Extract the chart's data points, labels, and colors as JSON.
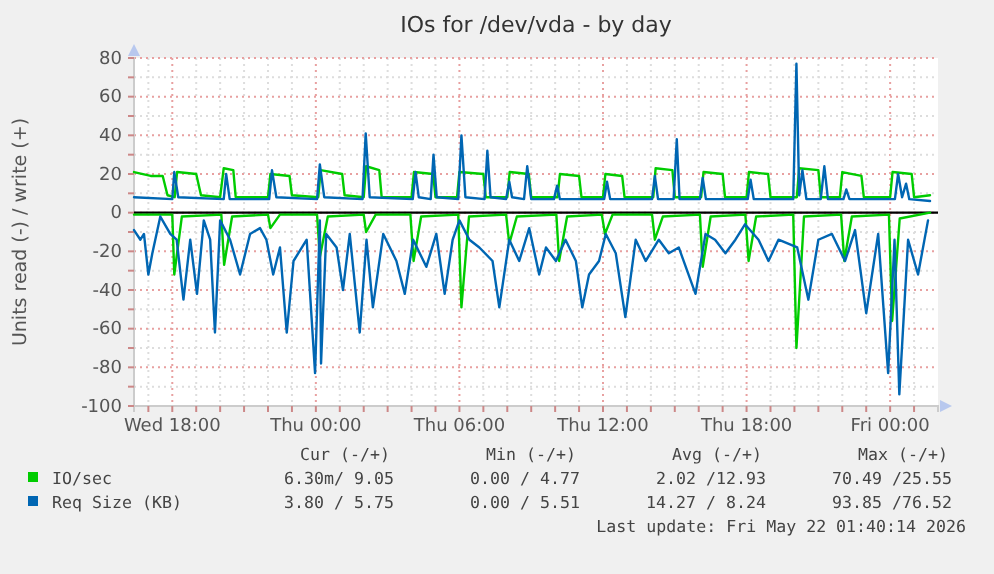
{
  "chart_data": {
    "type": "line",
    "title": "IOs for /dev/vda - by day",
    "ylabel": "Units read (-) / write (+)",
    "xlim": [
      "2026-05-20T16:24",
      "2026-05-22T02:00"
    ],
    "ylim": [
      -100,
      80
    ],
    "xticks": [
      {
        "value": "2026-05-20T17:00",
        "label": null
      },
      {
        "value": "2026-05-20T18:00",
        "label": "Wed 18:00"
      },
      {
        "value": "2026-05-20T19:00",
        "label": null
      },
      {
        "value": "2026-05-20T20:00",
        "label": null
      },
      {
        "value": "2026-05-20T21:00",
        "label": null
      },
      {
        "value": "2026-05-20T22:00",
        "label": null
      },
      {
        "value": "2026-05-20T23:00",
        "label": null
      },
      {
        "value": "2026-05-21T00:00",
        "label": "Thu 00:00"
      },
      {
        "value": "2026-05-21T01:00",
        "label": null
      },
      {
        "value": "2026-05-21T02:00",
        "label": null
      },
      {
        "value": "2026-05-21T03:00",
        "label": null
      },
      {
        "value": "2026-05-21T04:00",
        "label": null
      },
      {
        "value": "2026-05-21T05:00",
        "label": null
      },
      {
        "value": "2026-05-21T06:00",
        "label": "Thu 06:00"
      },
      {
        "value": "2026-05-21T07:00",
        "label": null
      },
      {
        "value": "2026-05-21T08:00",
        "label": null
      },
      {
        "value": "2026-05-21T09:00",
        "label": null
      },
      {
        "value": "2026-05-21T10:00",
        "label": null
      },
      {
        "value": "2026-05-21T11:00",
        "label": null
      },
      {
        "value": "2026-05-21T12:00",
        "label": "Thu 12:00"
      },
      {
        "value": "2026-05-21T13:00",
        "label": null
      },
      {
        "value": "2026-05-21T14:00",
        "label": null
      },
      {
        "value": "2026-05-21T15:00",
        "label": null
      },
      {
        "value": "2026-05-21T16:00",
        "label": null
      },
      {
        "value": "2026-05-21T17:00",
        "label": null
      },
      {
        "value": "2026-05-21T18:00",
        "label": "Thu 18:00"
      },
      {
        "value": "2026-05-21T19:00",
        "label": null
      },
      {
        "value": "2026-05-21T20:00",
        "label": null
      },
      {
        "value": "2026-05-21T21:00",
        "label": null
      },
      {
        "value": "2026-05-21T22:00",
        "label": null
      },
      {
        "value": "2026-05-21T23:00",
        "label": null
      },
      {
        "value": "2026-05-22T00:00",
        "label": "Fri 00:00"
      },
      {
        "value": "2026-05-22T01:00",
        "label": null
      }
    ],
    "yticks": [
      -100,
      {
        "value": -90,
        "label": null
      },
      -80,
      {
        "value": -70,
        "label": null
      },
      -60,
      {
        "value": -50,
        "label": null
      },
      -40,
      {
        "value": -30,
        "label": null
      },
      -20,
      {
        "value": -10,
        "label": null
      },
      0,
      {
        "value": 10,
        "label": null
      },
      20,
      {
        "value": 30,
        "label": null
      },
      40,
      {
        "value": 50,
        "label": null
      },
      60,
      {
        "value": 70,
        "label": null
      },
      80
    ],
    "grid": true,
    "legend": "bottom",
    "ref_lines": [
      {
        "axis": "y",
        "value": 0,
        "color": "#000000"
      }
    ],
    "series": [
      {
        "name": "IO/sec",
        "color": "#00cc00",
        "x": [
          "2026-05-20T16:24",
          "2026-05-20T17:06",
          "2026-05-20T17:36",
          "2026-05-20T17:48",
          "2026-05-20T18:06",
          "2026-05-20T18:12",
          "2026-05-20T19:00",
          "2026-05-20T19:12",
          "2026-05-20T20:00",
          "2026-05-20T20:09",
          "2026-05-20T20:33",
          "2026-05-20T20:39",
          "2026-05-20T22:00",
          "2026-05-20T22:06",
          "2026-05-20T22:54",
          "2026-05-20T23:00",
          "2026-05-21T00:06",
          "2026-05-21T00:12",
          "2026-05-21T01:06",
          "2026-05-21T01:12",
          "2026-05-21T02:00",
          "2026-05-21T02:06",
          "2026-05-21T02:39",
          "2026-05-21T02:45",
          "2026-05-21T04:00",
          "2026-05-21T04:06",
          "2026-05-21T04:54",
          "2026-05-21T05:00",
          "2026-05-21T05:54",
          "2026-05-21T06:00",
          "2026-05-21T07:00",
          "2026-05-21T07:06",
          "2026-05-21T08:00",
          "2026-05-21T08:06",
          "2026-05-21T08:54",
          "2026-05-21T09:00",
          "2026-05-21T10:06",
          "2026-05-21T10:12",
          "2026-05-21T11:00",
          "2026-05-21T11:06",
          "2026-05-21T12:00",
          "2026-05-21T12:06",
          "2026-05-21T12:48",
          "2026-05-21T12:54",
          "2026-05-21T14:06",
          "2026-05-21T14:12",
          "2026-05-21T14:54",
          "2026-05-21T15:00",
          "2026-05-21T16:06",
          "2026-05-21T16:12",
          "2026-05-21T17:00",
          "2026-05-21T17:06",
          "2026-05-21T18:00",
          "2026-05-21T18:06",
          "2026-05-21T18:54",
          "2026-05-21T19:00",
          "2026-05-21T20:06",
          "2026-05-21T20:12",
          "2026-05-21T21:00",
          "2026-05-21T21:06",
          "2026-05-21T21:54",
          "2026-05-21T22:00",
          "2026-05-21T22:48",
          "2026-05-21T22:54",
          "2026-05-22T00:00",
          "2026-05-22T00:06",
          "2026-05-22T00:54",
          "2026-05-22T01:00",
          "2026-05-22T01:40"
        ],
        "values": [
          21,
          19,
          19,
          9,
          8,
          21,
          20,
          9,
          8,
          23,
          22,
          8,
          8,
          20,
          19,
          9,
          8,
          22,
          20,
          9,
          8,
          24,
          22,
          8,
          8,
          21,
          20,
          8,
          8,
          21,
          20,
          8,
          8,
          21,
          20,
          8,
          8,
          20,
          19,
          8,
          8,
          20,
          19,
          8,
          8,
          23,
          22,
          8,
          8,
          21,
          20,
          8,
          8,
          21,
          20,
          8,
          8,
          23,
          22,
          8,
          8,
          21,
          19,
          8,
          8,
          21,
          20,
          8,
          9
        ]
      },
      {
        "color": "#00cc00",
        "x": [
          "2026-05-20T16:24",
          "2026-05-20T18:00",
          "2026-05-20T18:05",
          "2026-05-20T18:24",
          "2026-05-20T20:03",
          "2026-05-20T20:10",
          "2026-05-20T20:30",
          "2026-05-20T22:00",
          "2026-05-20T22:06",
          "2026-05-20T22:30",
          "2026-05-21T00:03",
          "2026-05-21T00:10",
          "2026-05-21T00:30",
          "2026-05-21T02:00",
          "2026-05-21T02:06",
          "2026-05-21T02:30",
          "2026-05-21T03:57",
          "2026-05-21T04:05",
          "2026-05-21T04:24",
          "2026-05-21T05:57",
          "2026-05-21T06:05",
          "2026-05-21T06:24",
          "2026-05-21T07:57",
          "2026-05-21T08:05",
          "2026-05-21T08:24",
          "2026-05-21T10:03",
          "2026-05-21T10:10",
          "2026-05-21T10:30",
          "2026-05-21T11:57",
          "2026-05-21T12:05",
          "2026-05-21T12:24",
          "2026-05-21T14:03",
          "2026-05-21T14:10",
          "2026-05-21T14:30",
          "2026-05-21T16:03",
          "2026-05-21T16:10",
          "2026-05-21T16:30",
          "2026-05-21T17:57",
          "2026-05-21T18:05",
          "2026-05-21T18:24",
          "2026-05-21T19:57",
          "2026-05-21T20:05",
          "2026-05-21T20:24",
          "2026-05-21T21:57",
          "2026-05-21T22:05",
          "2026-05-21T22:24",
          "2026-05-21T23:57",
          "2026-05-22T00:05",
          "2026-05-22T00:24",
          "2026-05-22T01:40"
        ],
        "values": [
          -1,
          -1,
          -32,
          -2,
          -1,
          -27,
          -2,
          -1,
          -8,
          -1,
          -1,
          -23,
          -2,
          -1,
          -10,
          -1,
          -1,
          -25,
          -2,
          -1,
          -49,
          -2,
          -1,
          -16,
          -2,
          -1,
          -25,
          -2,
          -1,
          -11,
          -1,
          -1,
          -14,
          -2,
          -1,
          -28,
          -2,
          -1,
          -25,
          -2,
          -1,
          -70,
          -2,
          -1,
          -25,
          -2,
          -1,
          -56,
          -3,
          0
        ]
      },
      {
        "name": "Req Size (KB)",
        "color": "#0066b3",
        "x": [
          "2026-05-20T16:24",
          "2026-05-20T18:00",
          "2026-05-20T18:05",
          "2026-05-20T18:15",
          "2026-05-20T20:09",
          "2026-05-20T20:15",
          "2026-05-20T20:24",
          "2026-05-20T22:03",
          "2026-05-20T22:10",
          "2026-05-20T22:21",
          "2026-05-21T00:03",
          "2026-05-21T00:10",
          "2026-05-21T00:21",
          "2026-05-21T01:57",
          "2026-05-21T02:05",
          "2026-05-21T02:15",
          "2026-05-21T04:03",
          "2026-05-21T04:10",
          "2026-05-21T04:18",
          "2026-05-21T04:48",
          "2026-05-21T04:55",
          "2026-05-21T05:03",
          "2026-05-21T05:57",
          "2026-05-21T06:05",
          "2026-05-21T06:15",
          "2026-05-21T07:03",
          "2026-05-21T07:10",
          "2026-05-21T07:18",
          "2026-05-21T07:57",
          "2026-05-21T08:05",
          "2026-05-21T08:12",
          "2026-05-21T08:42",
          "2026-05-21T08:50",
          "2026-05-21T09:00",
          "2026-05-21T09:57",
          "2026-05-21T10:05",
          "2026-05-21T10:12",
          "2026-05-21T12:03",
          "2026-05-21T12:10",
          "2026-05-21T12:18",
          "2026-05-21T14:03",
          "2026-05-21T14:10",
          "2026-05-21T14:18",
          "2026-05-21T14:57",
          "2026-05-21T15:05",
          "2026-05-21T15:12",
          "2026-05-21T16:03",
          "2026-05-21T16:10",
          "2026-05-21T16:18",
          "2026-05-21T18:03",
          "2026-05-21T18:10",
          "2026-05-21T18:18",
          "2026-05-21T19:57",
          "2026-05-21T20:05",
          "2026-05-21T20:12",
          "2026-05-21T20:20",
          "2026-05-21T20:30",
          "2026-05-21T21:06",
          "2026-05-21T21:15",
          "2026-05-21T21:24",
          "2026-05-21T22:03",
          "2026-05-21T22:10",
          "2026-05-21T22:18",
          "2026-05-22T00:12",
          "2026-05-22T00:20",
          "2026-05-22T00:30",
          "2026-05-22T00:40",
          "2026-05-22T00:48",
          "2026-05-22T01:40"
        ],
        "values": [
          8,
          7,
          21,
          8,
          7,
          20,
          7,
          7,
          22,
          8,
          7,
          25,
          8,
          7,
          41,
          8,
          7,
          21,
          8,
          7,
          30,
          8,
          7,
          40,
          8,
          7,
          32,
          8,
          7,
          16,
          8,
          7,
          24,
          7,
          7,
          14,
          7,
          7,
          16,
          7,
          7,
          19,
          7,
          7,
          38,
          7,
          7,
          18,
          7,
          7,
          17,
          7,
          7,
          77,
          9,
          22,
          7,
          7,
          24,
          7,
          7,
          12,
          7,
          7,
          20,
          8,
          15,
          7,
          6
        ]
      },
      {
        "color": "#0066b3",
        "x": [
          "2026-05-20T16:24",
          "2026-05-20T16:40",
          "2026-05-20T16:49",
          "2026-05-20T17:00",
          "2026-05-20T17:10",
          "2026-05-20T17:30",
          "2026-05-20T17:55",
          "2026-05-20T18:11",
          "2026-05-20T18:28",
          "2026-05-20T18:45",
          "2026-05-20T19:02",
          "2026-05-20T19:19",
          "2026-05-20T19:35",
          "2026-05-20T19:47",
          "2026-05-20T20:00",
          "2026-05-20T20:25",
          "2026-05-20T20:50",
          "2026-05-20T21:15",
          "2026-05-20T21:40",
          "2026-05-20T21:56",
          "2026-05-20T22:13",
          "2026-05-20T22:30",
          "2026-05-20T22:47",
          "2026-05-20T23:04",
          "2026-05-20T23:37",
          "2026-05-20T23:58",
          "2026-05-21T00:10",
          "2026-05-21T00:13",
          "2026-05-21T00:26",
          "2026-05-21T00:52",
          "2026-05-21T01:08",
          "2026-05-21T01:25",
          "2026-05-21T01:50",
          "2026-05-21T02:07",
          "2026-05-21T02:23",
          "2026-05-21T02:49",
          "2026-05-21T03:22",
          "2026-05-21T03:43",
          "2026-05-21T04:04",
          "2026-05-21T04:37",
          "2026-05-21T05:02",
          "2026-05-21T05:23",
          "2026-05-21T05:43",
          "2026-05-21T06:00",
          "2026-05-21T06:25",
          "2026-05-21T06:50",
          "2026-05-21T07:23",
          "2026-05-21T07:40",
          "2026-05-21T08:05",
          "2026-05-21T08:30",
          "2026-05-21T08:55",
          "2026-05-21T09:20",
          "2026-05-21T09:37",
          "2026-05-21T10:02",
          "2026-05-21T10:26",
          "2026-05-21T10:52",
          "2026-05-21T11:08",
          "2026-05-21T11:25",
          "2026-05-21T11:50",
          "2026-05-21T12:07",
          "2026-05-21T12:32",
          "2026-05-21T12:56",
          "2026-05-21T13:22",
          "2026-05-21T13:47",
          "2026-05-21T14:20",
          "2026-05-21T14:45",
          "2026-05-21T15:10",
          "2026-05-21T15:52",
          "2026-05-21T16:17",
          "2026-05-21T16:41",
          "2026-05-21T17:07",
          "2026-05-21T17:32",
          "2026-05-21T17:56",
          "2026-05-21T18:30",
          "2026-05-21T18:55",
          "2026-05-21T19:20",
          "2026-05-21T20:07",
          "2026-05-21T20:35",
          "2026-05-21T21:00",
          "2026-05-21T21:34",
          "2026-05-21T22:07",
          "2026-05-21T22:32",
          "2026-05-21T23:00",
          "2026-05-21T23:30",
          "2026-05-21T23:55",
          "2026-05-22T00:11",
          "2026-05-22T00:23",
          "2026-05-22T00:45",
          "2026-05-22T01:10",
          "2026-05-22T01:35"
        ],
        "values": [
          -9,
          -14,
          -11,
          -32,
          -21,
          -2,
          -11,
          -14,
          -45,
          -14,
          -42,
          -4,
          -14,
          -62,
          -4,
          -14,
          -32,
          -11,
          -8,
          -14,
          -32,
          -18,
          -62,
          -25,
          -14,
          -83,
          -4,
          -78,
          -11,
          -18,
          -40,
          -11,
          -62,
          -14,
          -49,
          -11,
          -25,
          -42,
          -14,
          -28,
          -11,
          -42,
          -14,
          -4,
          -14,
          -18,
          -25,
          -49,
          -14,
          -25,
          -8,
          -32,
          -18,
          -25,
          -14,
          -25,
          -49,
          -32,
          -25,
          -11,
          -21,
          -54,
          -14,
          -25,
          -14,
          -21,
          -18,
          -42,
          -11,
          -14,
          -21,
          -14,
          -6,
          -14,
          -25,
          -14,
          -18,
          -45,
          -14,
          -11,
          -25,
          -9,
          -52,
          -11,
          -83,
          -14,
          -94,
          -14,
          -32,
          -4
        ]
      }
    ],
    "annotations": [
      "Cur (-/+)",
      "Min (-/+)",
      "Avg (-/+)",
      "Max (-/+)",
      "6.30m/ 9.05",
      "0.00 / 4.77",
      "2.02 /12.93",
      "70.49 /25.55",
      "3.80 / 5.75",
      "0.00 / 5.51",
      "14.27 / 8.24",
      "93.85 /76.52",
      "Last update: Fri May 22 01:40:14 2026"
    ]
  }
}
